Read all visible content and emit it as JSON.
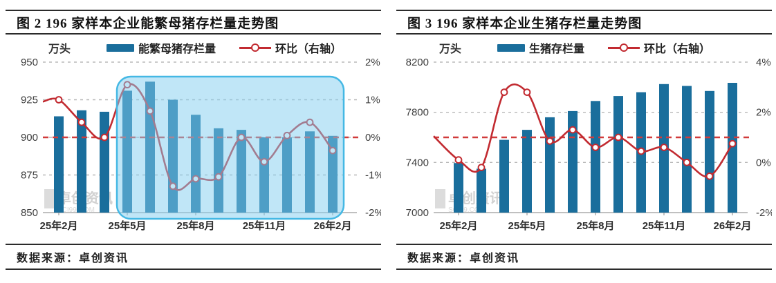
{
  "colors": {
    "bar": "#1a6e9c",
    "line": "#c22b31",
    "marker_fill": "#ffffff",
    "ref_line": "#d13b3b",
    "grid": "#b8b8b8",
    "baseline": "#9a9a9a",
    "axis_text": "#3f3f3f",
    "highlight_fill": "rgba(130,205,240,0.5)",
    "highlight_border": "#44b8e4",
    "watermark": "#c9c9c9"
  },
  "panels": [
    {
      "title": "图 2 196 家样本企业能繁母猪存栏量走势图",
      "unit": "万头",
      "legend_bar": "能繁母猪存栏量",
      "legend_line": "环比（右轴）",
      "source": "数据来源：卓创资讯"
    },
    {
      "title": "图 3 196 家样本企业生猪存栏量走势图",
      "unit": "万头",
      "legend_bar": "生猪存栏量",
      "legend_line": "环比（右轴）",
      "source": "数据来源：卓创资讯"
    }
  ],
  "watermark": {
    "text": "卓创资讯",
    "subtext": "SCI99.COM"
  },
  "chart_data": [
    {
      "type": "bar+line",
      "title": "图 2 196 家样本企业能繁母猪存栏量走势图",
      "unit": "万头",
      "n_points": 13,
      "x_tick_labels": [
        "25年2月",
        "25年5月",
        "25年8月",
        "25年11月",
        "26年2月"
      ],
      "x_tick_indices": [
        0,
        3,
        6,
        9,
        12
      ],
      "series": [
        {
          "name": "能繁母猪存栏量",
          "type": "bar",
          "axis": "left",
          "values": [
            914,
            918,
            917,
            931,
            937,
            925,
            915,
            906,
            905,
            900,
            900,
            904,
            901
          ]
        },
        {
          "name": "环比（右轴）",
          "type": "line",
          "axis": "right",
          "values_pct": [
            1.0,
            0.4,
            0.0,
            1.4,
            0.7,
            -1.3,
            -1.1,
            -1.05,
            0.0,
            -0.65,
            0.05,
            0.4,
            -0.35
          ],
          "edge_start_pct": 0.95
        }
      ],
      "left_axis": {
        "ticks": [
          "950",
          "925",
          "900",
          "875",
          "850"
        ],
        "max": 950,
        "min": 850,
        "label": "万头"
      },
      "right_axis": {
        "ticks": [
          "2%",
          "1%",
          "0%",
          "-1%",
          "-2%"
        ],
        "max": 2,
        "min": -2
      },
      "ref_line_pct": 0,
      "highlight_box": {
        "from_index": 3,
        "to_index": 12
      },
      "legend_position": "top",
      "grid": "dashed-horizontal"
    },
    {
      "type": "bar+line",
      "title": "图 3 196 家样本企业生猪存栏量走势图",
      "unit": "万头",
      "n_points": 13,
      "x_tick_labels": [
        "25年2月",
        "25年5月",
        "25年8月",
        "25年11月",
        "26年2月"
      ],
      "x_tick_indices": [
        0,
        3,
        6,
        9,
        12
      ],
      "series": [
        {
          "name": "生猪存栏量",
          "type": "bar",
          "axis": "left",
          "values": [
            7395,
            7350,
            7580,
            7660,
            7760,
            7810,
            7890,
            7930,
            7960,
            8025,
            8010,
            7970,
            8035
          ]
        },
        {
          "name": "环比（右轴）",
          "type": "line",
          "axis": "right",
          "values_pct": [
            0.1,
            -0.2,
            2.8,
            2.8,
            0.85,
            1.3,
            0.6,
            1.0,
            0.45,
            0.6,
            0.0,
            -0.55,
            0.75
          ],
          "edge_start_pct": 1.05
        }
      ],
      "left_axis": {
        "ticks": [
          "8200",
          "7800",
          "7400",
          "7000"
        ],
        "max": 8200,
        "min": 7000,
        "label": "万头"
      },
      "right_axis": {
        "ticks": [
          "4%",
          "2%",
          "0%",
          "-2%"
        ],
        "max": 4,
        "min": -2
      },
      "ref_line_pct": 1,
      "highlight_box": null,
      "legend_position": "top",
      "grid": "dashed-horizontal"
    }
  ]
}
